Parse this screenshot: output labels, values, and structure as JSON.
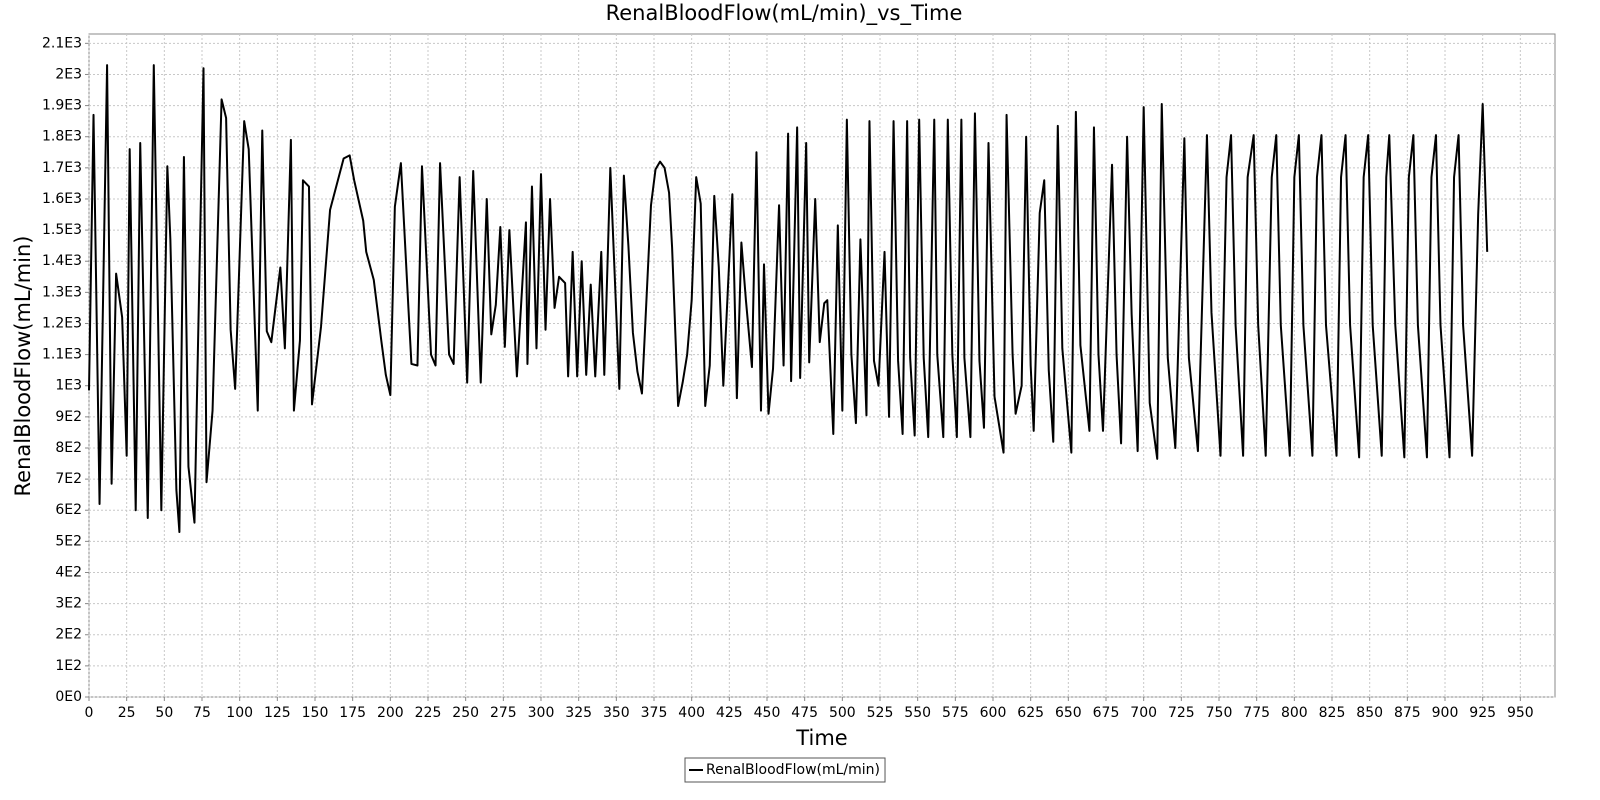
{
  "chart_data": {
    "type": "line",
    "title": "RenalBloodFlow(mL/min)_vs_Time",
    "x_label": "Time",
    "y_label": "RenalBloodFlow(mL/min)",
    "xlim": [
      0,
      973
    ],
    "ylim": [
      0,
      2130
    ],
    "xticks": [
      0,
      25,
      50,
      75,
      100,
      125,
      150,
      175,
      200,
      225,
      250,
      275,
      300,
      325,
      350,
      375,
      400,
      425,
      450,
      475,
      500,
      525,
      550,
      575,
      600,
      625,
      650,
      675,
      700,
      725,
      750,
      775,
      800,
      825,
      850,
      875,
      900,
      925,
      950
    ],
    "yticks": [
      {
        "value": 0,
        "label": "0E0"
      },
      {
        "value": 100,
        "label": "1E2"
      },
      {
        "value": 200,
        "label": "2E2"
      },
      {
        "value": 300,
        "label": "3E2"
      },
      {
        "value": 400,
        "label": "4E2"
      },
      {
        "value": 500,
        "label": "5E2"
      },
      {
        "value": 600,
        "label": "6E2"
      },
      {
        "value": 700,
        "label": "7E2"
      },
      {
        "value": 800,
        "label": "8E2"
      },
      {
        "value": 900,
        "label": "9E2"
      },
      {
        "value": 1000,
        "label": "1E3"
      },
      {
        "value": 1100,
        "label": "1.1E3"
      },
      {
        "value": 1200,
        "label": "1.2E3"
      },
      {
        "value": 1300,
        "label": "1.3E3"
      },
      {
        "value": 1400,
        "label": "1.4E3"
      },
      {
        "value": 1500,
        "label": "1.5E3"
      },
      {
        "value": 1600,
        "label": "1.6E3"
      },
      {
        "value": 1700,
        "label": "1.7E3"
      },
      {
        "value": 1800,
        "label": "1.8E3"
      },
      {
        "value": 1900,
        "label": "1.9E3"
      },
      {
        "value": 2000,
        "label": "2E3"
      },
      {
        "value": 2100,
        "label": "2.1E3"
      }
    ],
    "grid": true,
    "legend": "bottom",
    "x": [
      0,
      3,
      7,
      12,
      15,
      18,
      22,
      25,
      27,
      31,
      34,
      39,
      43,
      48,
      52,
      54,
      58,
      60,
      63,
      66,
      70,
      76,
      78,
      82,
      88,
      91,
      94,
      97,
      103,
      106,
      112,
      115,
      118,
      121,
      127,
      130,
      134,
      136,
      140,
      142,
      146,
      148,
      154,
      160,
      169,
      173,
      176,
      182,
      184,
      189,
      194,
      197,
      200,
      203,
      207,
      212,
      214,
      218,
      221,
      227,
      230,
      233,
      239,
      242,
      246,
      251,
      255,
      260,
      264,
      267,
      270,
      273,
      276,
      279,
      284,
      290,
      291,
      294,
      297,
      300,
      303,
      306,
      309,
      312,
      316,
      318,
      321,
      324,
      327,
      330,
      333,
      336,
      340,
      342,
      346,
      352,
      355,
      358,
      361,
      364,
      367,
      373,
      376,
      379,
      382,
      385,
      387,
      391,
      394,
      397,
      400,
      403,
      406,
      409,
      412,
      415,
      418,
      421,
      427,
      430,
      433,
      436,
      440,
      443,
      446,
      448,
      451,
      454,
      458,
      461,
      464,
      466,
      470,
      472,
      476,
      478,
      482,
      485,
      488,
      490,
      494,
      497,
      500,
      503,
      506,
      509,
      512,
      516,
      518,
      521,
      524,
      528,
      531,
      534,
      537,
      540,
      543,
      545,
      548,
      551,
      554,
      557,
      561,
      563,
      567,
      570,
      573,
      576,
      579,
      581,
      585,
      588,
      591,
      594,
      597,
      601,
      607,
      609,
      613,
      615,
      619,
      622,
      625,
      627,
      631,
      634,
      637,
      640,
      643,
      646,
      652,
      655,
      658,
      664,
      667,
      670,
      673,
      679,
      682,
      685,
      689,
      692,
      696,
      700,
      704,
      709,
      712,
      716,
      721,
      727,
      730,
      736,
      742,
      745,
      751,
      755,
      758,
      761,
      766,
      769,
      773,
      776,
      781,
      785,
      788,
      791,
      797,
      800,
      803,
      806,
      812,
      815,
      818,
      821,
      828,
      831,
      834,
      837,
      843,
      846,
      849,
      852,
      858,
      861,
      863,
      867,
      873,
      876,
      879,
      882,
      888,
      891,
      894,
      897,
      903,
      906,
      909,
      912,
      918,
      922,
      925,
      928
    ],
    "series": [
      {
        "name": "RenalBloodFlow(mL/min)",
        "color": "#000000",
        "values": [
          985,
          1870,
          620,
          2030,
          685,
          1360,
          1220,
          775,
          1760,
          600,
          1780,
          575,
          2030,
          600,
          1705,
          1470,
          665,
          530,
          1735,
          740,
          560,
          2020,
          690,
          920,
          1920,
          1860,
          1180,
          990,
          1850,
          1760,
          920,
          1820,
          1175,
          1140,
          1380,
          1120,
          1790,
          920,
          1145,
          1660,
          1640,
          940,
          1190,
          1565,
          1730,
          1740,
          1660,
          1530,
          1430,
          1340,
          1145,
          1035,
          970,
          1575,
          1715,
          1250,
          1070,
          1065,
          1705,
          1100,
          1065,
          1715,
          1100,
          1070,
          1670,
          1010,
          1690,
          1010,
          1600,
          1165,
          1260,
          1510,
          1125,
          1500,
          1030,
          1525,
          1070,
          1640,
          1120,
          1680,
          1180,
          1600,
          1250,
          1350,
          1330,
          1030,
          1430,
          1030,
          1400,
          1035,
          1325,
          1030,
          1430,
          1035,
          1700,
          990,
          1675,
          1450,
          1170,
          1045,
          975,
          1580,
          1695,
          1720,
          1700,
          1620,
          1445,
          935,
          1010,
          1100,
          1275,
          1670,
          1585,
          935,
          1065,
          1610,
          1380,
          1000,
          1615,
          960,
          1460,
          1275,
          1060,
          1750,
          920,
          1390,
          910,
          1055,
          1580,
          1065,
          1810,
          1015,
          1830,
          1025,
          1780,
          1075,
          1600,
          1140,
          1265,
          1275,
          845,
          1515,
          920,
          1855,
          1100,
          880,
          1470,
          905,
          1850,
          1080,
          1000,
          1430,
          900,
          1850,
          1080,
          845,
          1850,
          1090,
          840,
          1855,
          1090,
          835,
          1855,
          1100,
          835,
          1855,
          1100,
          835,
          1855,
          1090,
          835,
          1875,
          1080,
          865,
          1780,
          965,
          785,
          1870,
          1100,
          910,
          1000,
          1800,
          1065,
          855,
          1555,
          1660,
          1050,
          820,
          1835,
          1120,
          785,
          1880,
          1130,
          855,
          1830,
          1100,
          855,
          1710,
          1100,
          815,
          1800,
          1230,
          790,
          1895,
          945,
          765,
          1905,
          1090,
          800,
          1795,
          1090,
          790,
          1805,
          1235,
          775,
          1670,
          1805,
          1195,
          775,
          1670,
          1805,
          1195,
          775,
          1670,
          1805,
          1195,
          775,
          1670,
          1805,
          1195,
          775,
          1670,
          1805,
          1195,
          775,
          1670,
          1805,
          1195,
          770,
          1670,
          1805,
          1195,
          775,
          1670,
          1805,
          1195,
          770,
          1670,
          1805,
          1195,
          770,
          1670,
          1805,
          1195,
          770,
          1670,
          1805,
          1195,
          775,
          1550,
          1905,
          1430
        ]
      }
    ]
  }
}
